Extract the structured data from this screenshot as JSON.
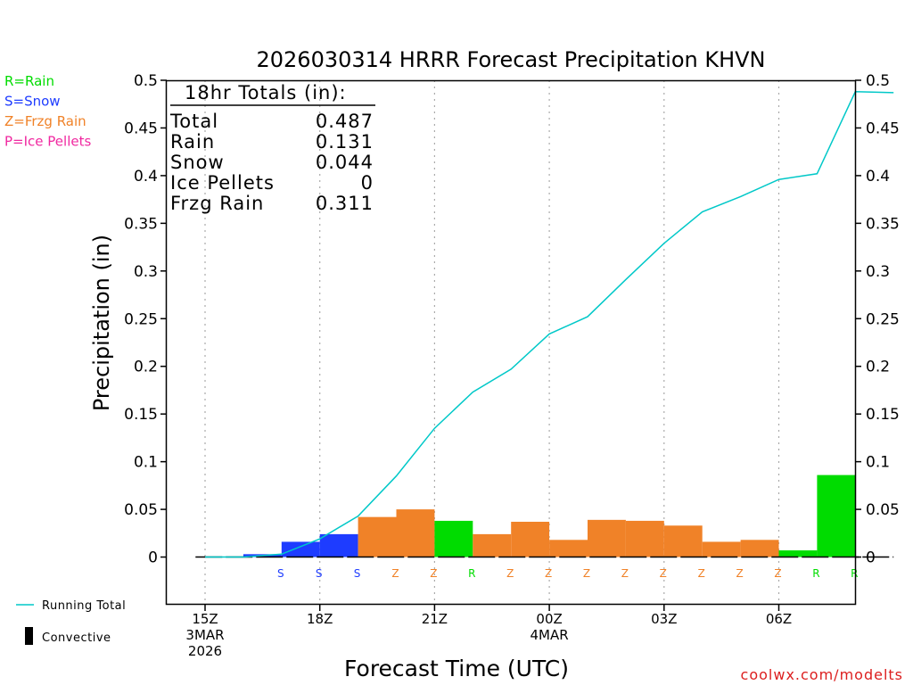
{
  "chart_data": {
    "type": "bar",
    "title": "2026030314 HRRR Forecast Precipitation KHVN",
    "xlabel": "Forecast Time (UTC)",
    "ylabel": "Precipitation (in)",
    "ylim": [
      -0.05,
      0.5
    ],
    "yticks": [
      0,
      0.05,
      0.1,
      0.15,
      0.2,
      0.25,
      0.3,
      0.35,
      0.4,
      0.45,
      0.5
    ],
    "ytick_labels": [
      "0",
      "0.05",
      "0.1",
      "0.15",
      "0.2",
      "0.25",
      "0.3",
      "0.35",
      "0.4",
      "0.45",
      "0.5"
    ],
    "xticks": [
      {
        "hour": 0,
        "lines": [
          "15Z",
          "3MAR",
          "2026"
        ]
      },
      {
        "hour": 3,
        "lines": [
          "18Z"
        ]
      },
      {
        "hour": 6,
        "lines": [
          "21Z"
        ]
      },
      {
        "hour": 9,
        "lines": [
          "00Z",
          "4MAR"
        ]
      },
      {
        "hour": 12,
        "lines": [
          "03Z"
        ]
      },
      {
        "hour": 15,
        "lines": [
          "06Z"
        ]
      }
    ],
    "hours": [
      1,
      2,
      3,
      4,
      5,
      6,
      7,
      8,
      9,
      10,
      11,
      12,
      13,
      14,
      15,
      16,
      17,
      18
    ],
    "hourly_precip": [
      0,
      0.003,
      0.016,
      0.024,
      0.042,
      0.05,
      0.038,
      0.024,
      0.037,
      0.018,
      0.039,
      0.038,
      0.033,
      0.016,
      0.018,
      0.007,
      0.086,
      0
    ],
    "ptype": [
      "",
      "S",
      "S",
      "S",
      "Z",
      "Z",
      "R",
      "Z",
      "Z",
      "Z",
      "Z",
      "Z",
      "Z",
      "Z",
      "Z",
      "R",
      "R",
      ""
    ],
    "running_total_hours": [
      0,
      1,
      2,
      3,
      4,
      5,
      6,
      7,
      8,
      9,
      10,
      11,
      12,
      13,
      14,
      15,
      16,
      17,
      18
    ],
    "running_total": [
      0,
      0,
      0.003,
      0.019,
      0.043,
      0.085,
      0.135,
      0.173,
      0.197,
      0.234,
      0.252,
      0.291,
      0.329,
      0.362,
      0.378,
      0.396,
      0.402,
      0.488,
      0.487
    ],
    "series_colors": {
      "R": "#00dc00",
      "S": "#1e3cff",
      "Z": "#f08228",
      "P": "#f028a0",
      "running_total": "#00c8c8"
    },
    "totals_box": {
      "heading": "18hr Totals (in):",
      "rows": [
        {
          "label": "Total",
          "value": "0.487"
        },
        {
          "label": "Rain",
          "value": "0.131"
        },
        {
          "label": "Snow",
          "value": "0.044"
        },
        {
          "label": "Ice Pellets",
          "value": "0"
        },
        {
          "label": "Frzg Rain",
          "value": "0.311"
        }
      ]
    },
    "ptype_legend": [
      {
        "code": "R",
        "text": "R=Rain",
        "color": "#00dc00"
      },
      {
        "code": "S",
        "text": "S=Snow",
        "color": "#1e3cff"
      },
      {
        "code": "Z",
        "text": "Z=Frzg Rain",
        "color": "#f08228"
      },
      {
        "code": "P",
        "text": "P=Ice Pellets",
        "color": "#f028a0"
      }
    ],
    "legend": {
      "running_total": "Running Total",
      "convective": "Convective"
    },
    "credit": "coolwx.com/modelts"
  }
}
